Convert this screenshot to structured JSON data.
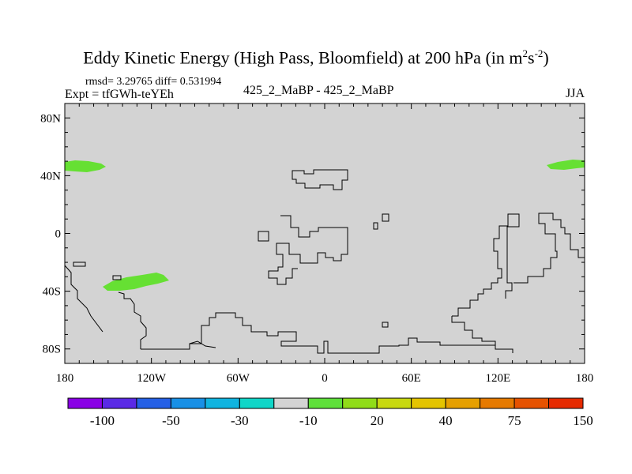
{
  "title": {
    "main": "Eddy Kinetic Energy (High Pass, Bloomfield) at 200 hPa (in m",
    "sup1": "2",
    "mid": "s",
    "sup2": "-2",
    "close": ")"
  },
  "stats": "rmsd= 3.29765 diff= 0.531994",
  "expt": "Expt = tfGWh-teYEh",
  "center_label": "425_2_MaBP - 425_2_MaBP",
  "season": "JJA",
  "map": {
    "lon_range": [
      -180,
      180
    ],
    "lat_range": [
      -90,
      90
    ],
    "background_color": "#d3d3d3",
    "lat_tick_labels": [
      "80N",
      "40N",
      "0",
      "40S",
      "80S"
    ],
    "lon_tick_labels": [
      "180",
      "120W",
      "60W",
      "0",
      "60E",
      "120E",
      "180"
    ]
  },
  "colorbar": {
    "colors": [
      "#8a00e6",
      "#5a2ae6",
      "#2560e6",
      "#1890e6",
      "#10b4e0",
      "#10d6c8",
      "#d3d3d3",
      "#5ee03a",
      "#90dc18",
      "#c8d810",
      "#e4c400",
      "#e6a000",
      "#e67a00",
      "#e65200",
      "#e62a00"
    ],
    "labels": [
      "-100",
      "-50",
      "-30",
      "-10",
      "20",
      "40",
      "75",
      "150"
    ]
  },
  "highlight_color": "#66e033"
}
